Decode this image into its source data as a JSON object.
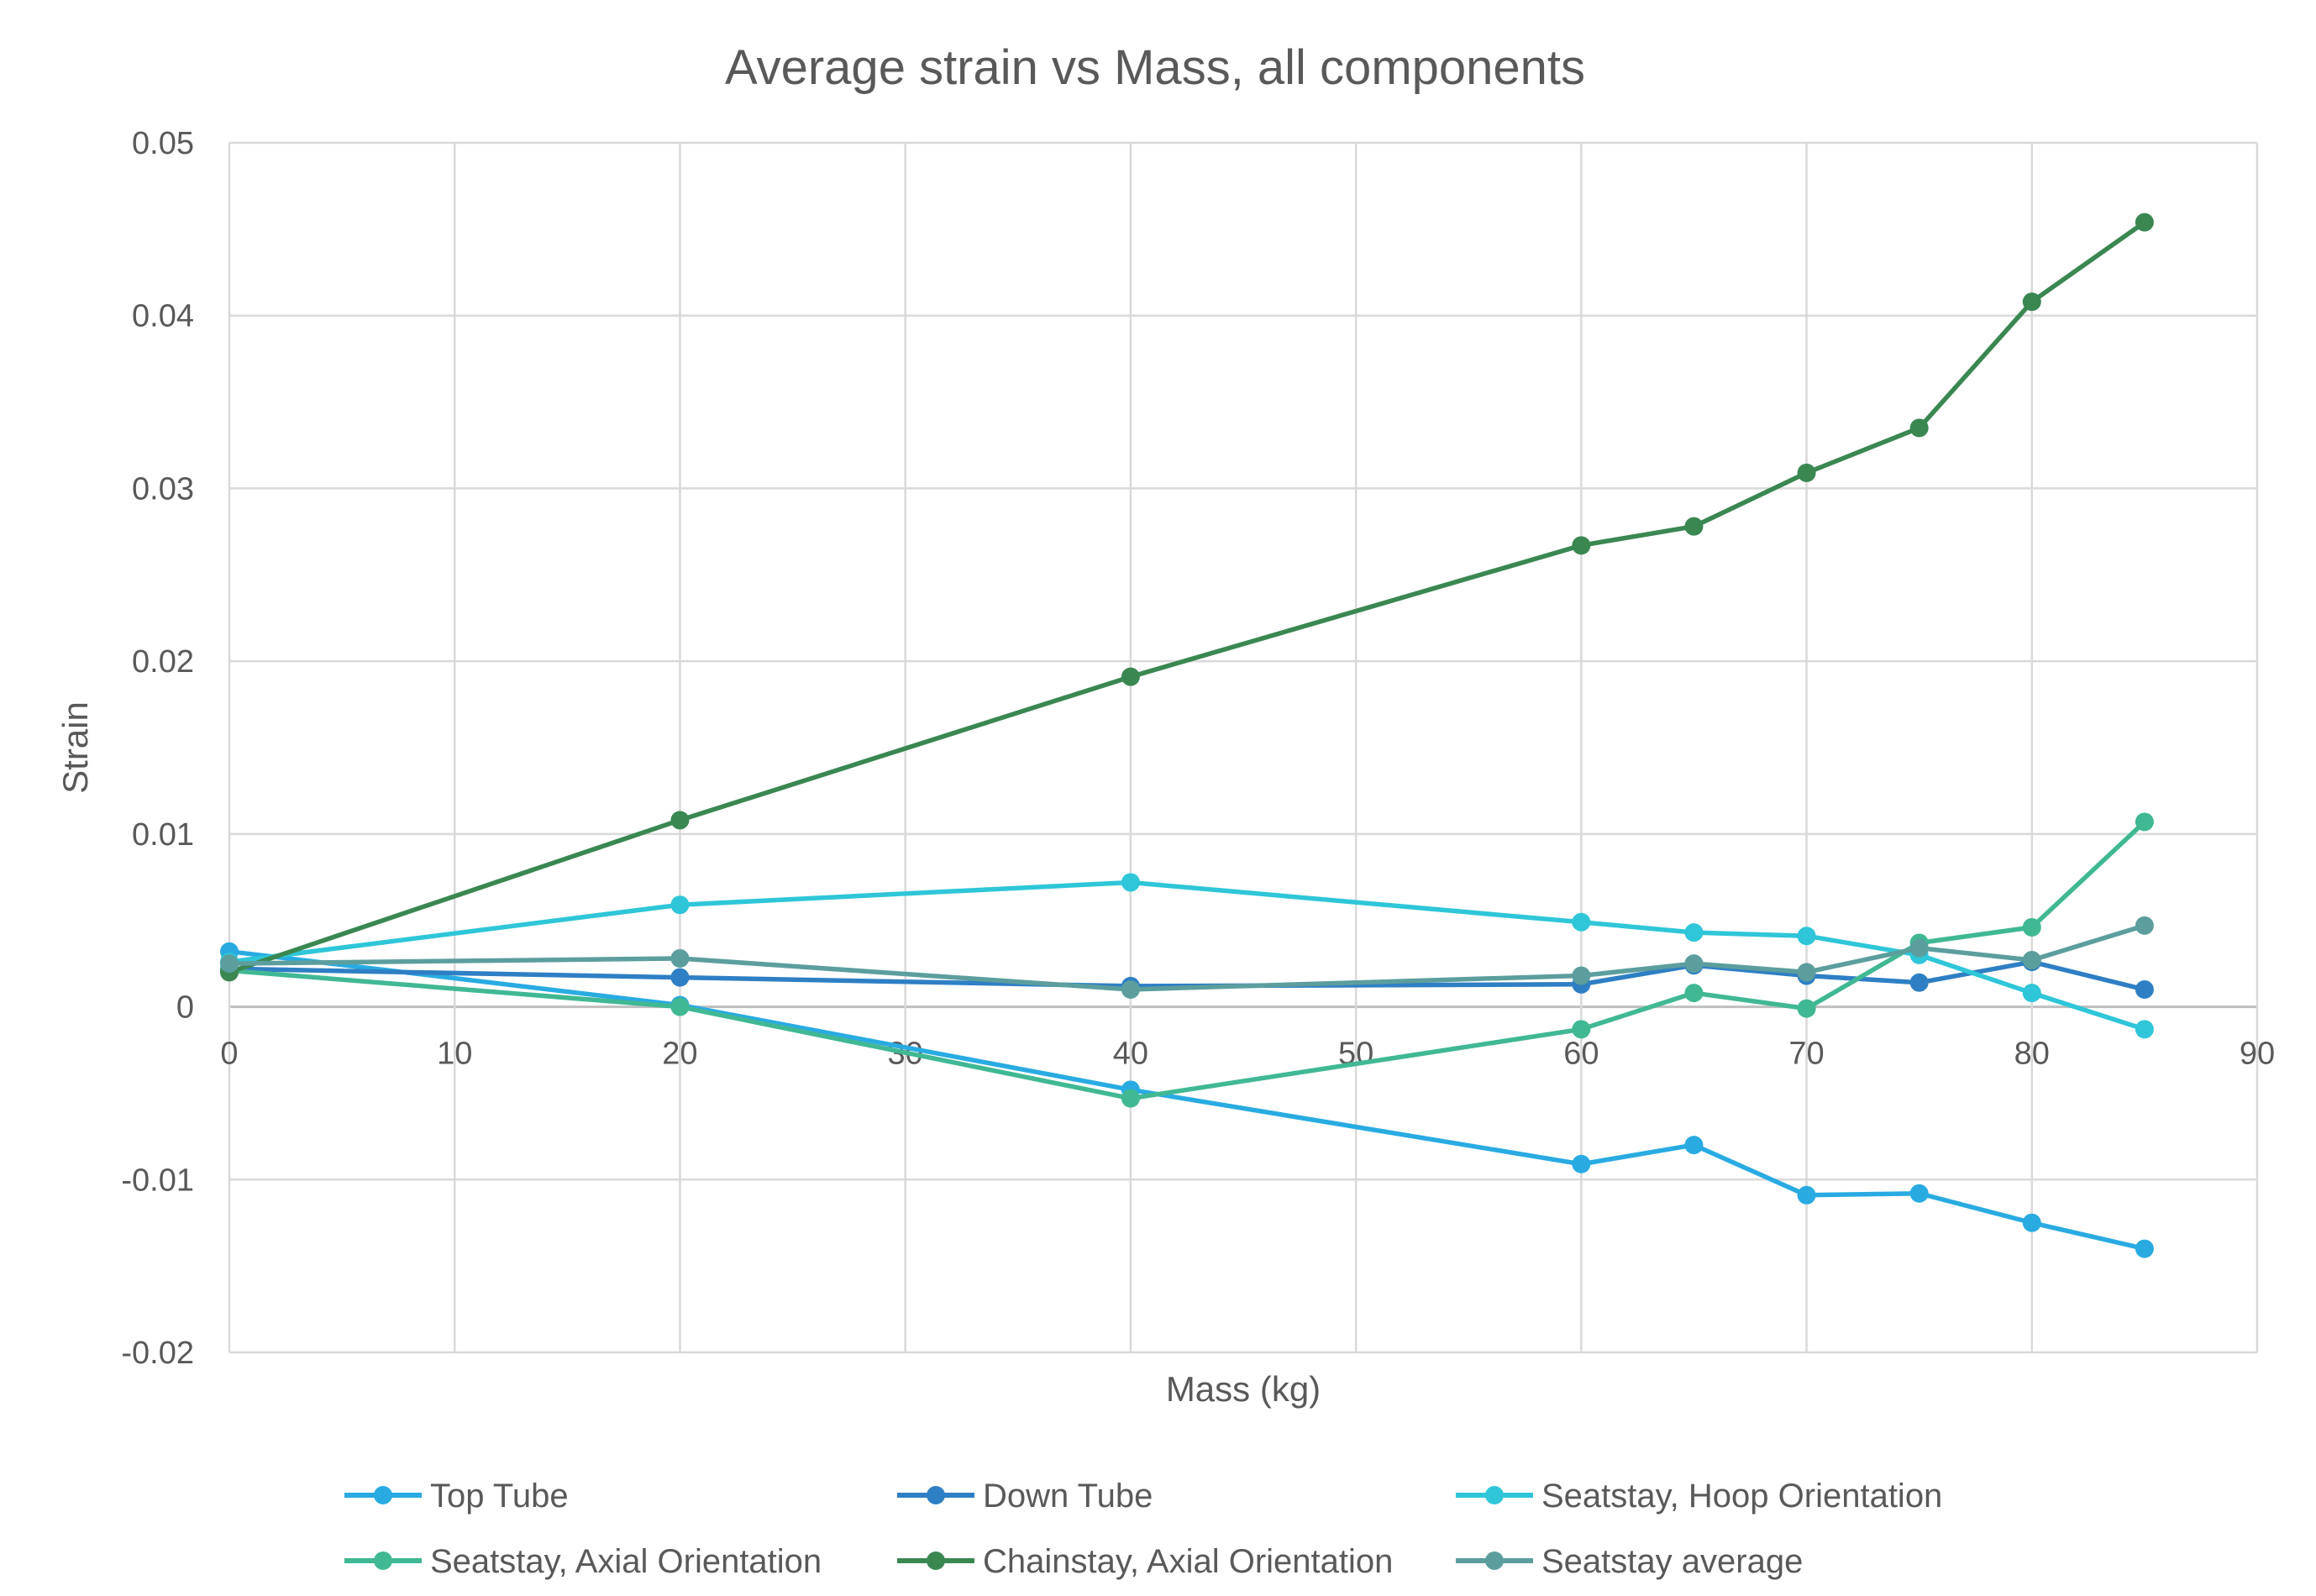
{
  "chart_data": {
    "type": "line",
    "title": "Average strain vs Mass, all components",
    "xlabel": "Mass (kg)",
    "ylabel": "Strain",
    "xlim": [
      0,
      90
    ],
    "ylim": [
      -0.02,
      0.05
    ],
    "x_ticks": [
      "0",
      "10",
      "20",
      "30",
      "40",
      "50",
      "60",
      "70",
      "80",
      "90"
    ],
    "y_ticks": [
      "0.05",
      "0.04",
      "0.03",
      "0.02",
      "0.01",
      "0",
      "-0.01",
      "-0.02"
    ],
    "grid": true,
    "legend_position": "bottom",
    "x": [
      0,
      20,
      40,
      60,
      65,
      70,
      75,
      80,
      85
    ],
    "series": [
      {
        "name": "Top Tube",
        "color": "#29abe2",
        "values": [
          0.0032,
          0.0001,
          -0.0048,
          -0.0091,
          -0.008,
          -0.0109,
          -0.0108,
          -0.0125,
          -0.014
        ]
      },
      {
        "name": "Down Tube",
        "color": "#2e7fc4",
        "values": [
          0.0022,
          0.0017,
          0.0012,
          0.0013,
          0.0024,
          0.0018,
          0.0014,
          0.0026,
          0.001
        ]
      },
      {
        "name": "Seatstay, Hoop Orientation",
        "color": "#2ec6d8",
        "values": [
          0.0026,
          0.0059,
          0.0072,
          0.0049,
          0.0043,
          0.0041,
          0.003,
          0.0008,
          -0.0013
        ]
      },
      {
        "name": "Seatstay, Axial Orientation",
        "color": "#40b894",
        "values": [
          0.0021,
          0.0,
          -0.0053,
          -0.0013,
          0.0008,
          -0.0001,
          0.0037,
          0.0046,
          0.0107
        ]
      },
      {
        "name": "Chainstay, Axial Orientation",
        "color": "#3a8752",
        "values": [
          0.002,
          0.0108,
          0.0191,
          0.0267,
          0.0278,
          0.0309,
          0.0335,
          0.0408,
          0.0454
        ]
      },
      {
        "name": "Seatstay average",
        "color": "#5c9e9e",
        "values": [
          0.0025,
          0.0028,
          0.001,
          0.0018,
          0.0025,
          0.002,
          0.0034,
          0.0027,
          0.0047
        ]
      }
    ]
  }
}
